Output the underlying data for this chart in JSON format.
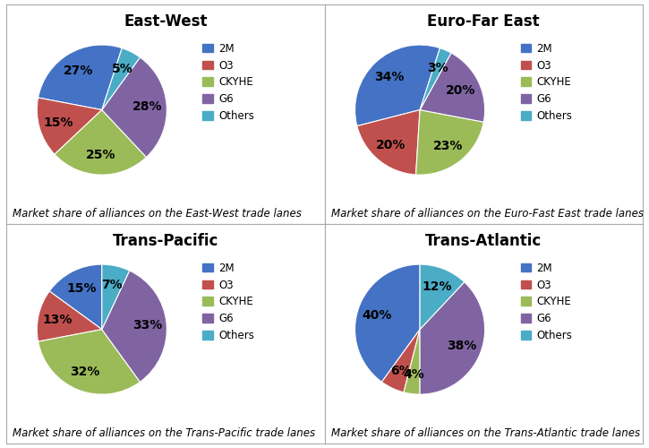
{
  "charts": [
    {
      "title": "East-West",
      "caption": "Market share of alliances on the East-West trade lanes",
      "values": [
        27,
        15,
        25,
        28,
        5
      ],
      "colors": [
        "#4472C4",
        "#C0504D",
        "#9BBB59",
        "#8064A2",
        "#4BACC6"
      ],
      "startangle": 72
    },
    {
      "title": "Euro-Far East",
      "caption": "Market share of alliances on the Euro-Fast East trade lanes",
      "values": [
        34,
        20,
        23,
        20,
        3
      ],
      "colors": [
        "#4472C4",
        "#C0504D",
        "#9BBB59",
        "#8064A2",
        "#4BACC6"
      ],
      "startangle": 72
    },
    {
      "title": "Trans-Pacific",
      "caption": "Market share of alliances on the Trans-Pacific trade lanes",
      "values": [
        15,
        13,
        32,
        33,
        7
      ],
      "colors": [
        "#4472C4",
        "#C0504D",
        "#9BBB59",
        "#8064A2",
        "#4BACC6"
      ],
      "startangle": 90
    },
    {
      "title": "Trans-Atlantic",
      "caption": "Market share of alliances on the Trans-Atlantic trade lanes",
      "values": [
        40,
        6,
        4,
        38,
        12
      ],
      "colors": [
        "#4472C4",
        "#C0504D",
        "#9BBB59",
        "#8064A2",
        "#4BACC6"
      ],
      "startangle": 90
    }
  ],
  "legend_labels": [
    "2M",
    "O3",
    "CKYHE",
    "G6",
    "Others"
  ],
  "legend_colors": [
    "#4472C4",
    "#C0504D",
    "#9BBB59",
    "#8064A2",
    "#4BACC6"
  ],
  "pct_fontsize": 10,
  "title_fontsize": 12,
  "caption_fontsize": 8.5
}
